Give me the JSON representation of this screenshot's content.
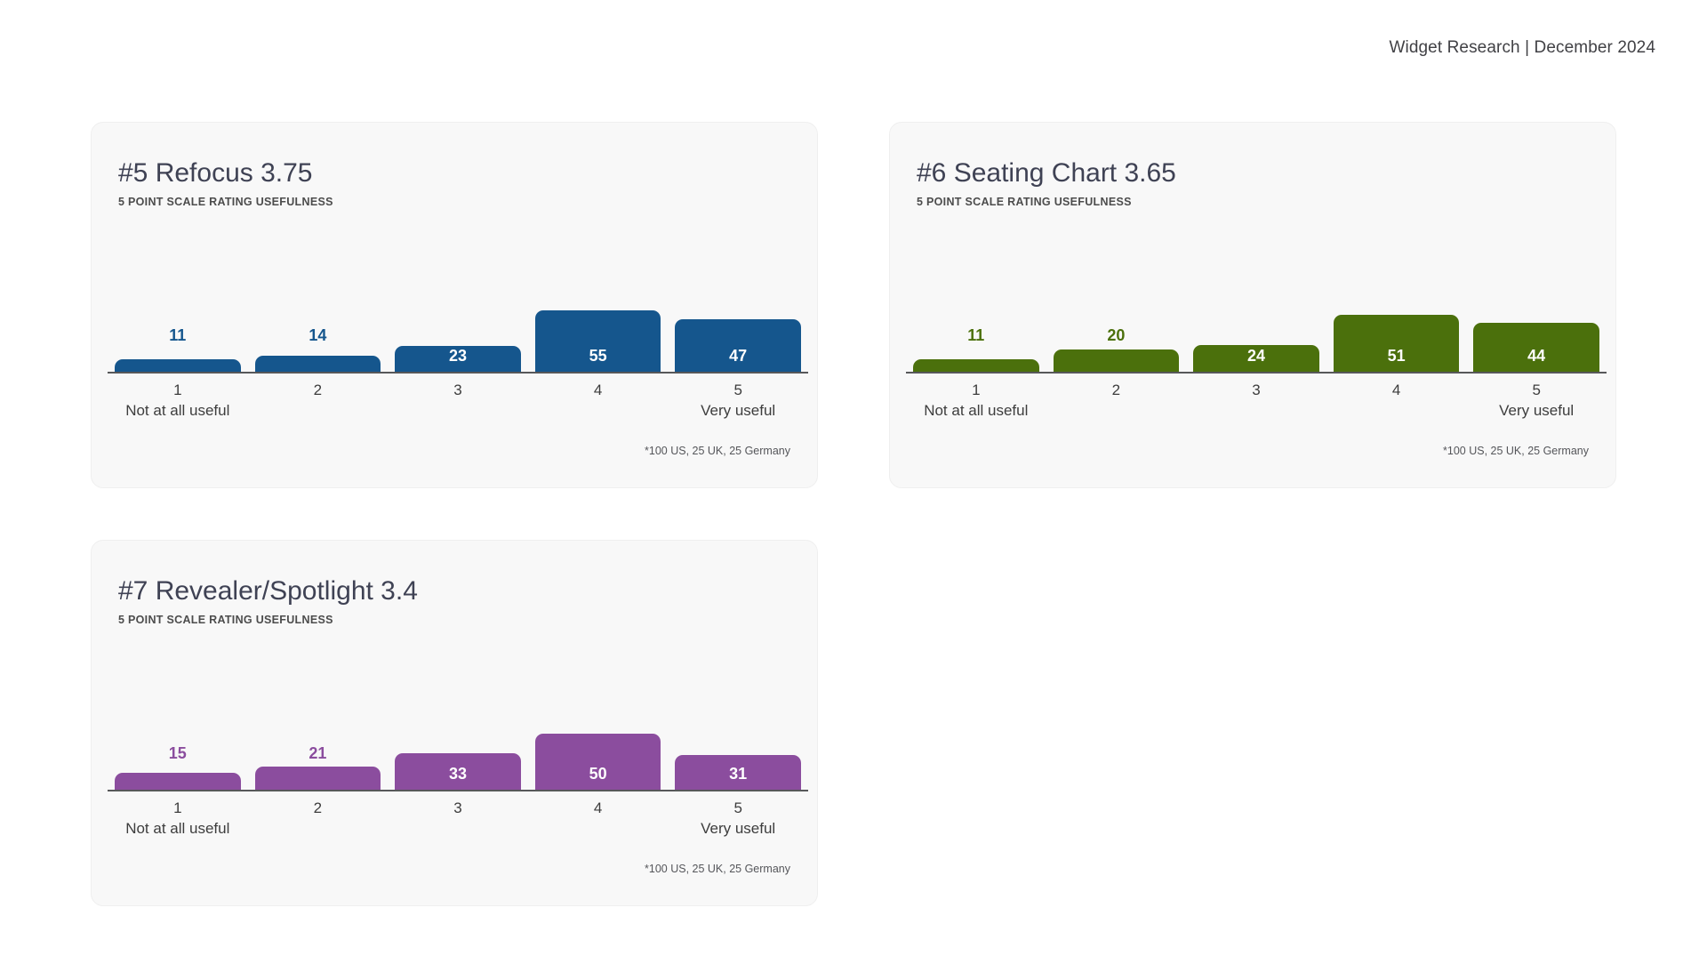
{
  "header": {
    "caption": "Widget Research | December 2024"
  },
  "colors": {
    "page_background": "#ffffff",
    "card_background": "#f8f8f8",
    "axis_line": "#57585a",
    "title_text": "#3f4254",
    "blue": "#15568d",
    "green": "#4b700c",
    "purple": "#8b4d9e"
  },
  "chart_data": [
    {
      "type": "bar",
      "title": "#5 Refocus 3.75",
      "subtitle": "5 POINT SCALE RATING USEFULNESS",
      "categories": [
        "1",
        "2",
        "3",
        "4",
        "5"
      ],
      "values": [
        11,
        14,
        23,
        55,
        47
      ],
      "bar_color": "#15568d",
      "value_labels": "on",
      "category_sublabels": {
        "1": "Not at all useful",
        "5": "Very useful"
      },
      "footnote": "*100 US, 25 UK, 25 Germany",
      "xlabel": "",
      "ylabel": "",
      "grid": "off",
      "legend": "none"
    },
    {
      "type": "bar",
      "title": "#6 Seating Chart 3.65",
      "subtitle": "5 POINT SCALE RATING USEFULNESS",
      "categories": [
        "1",
        "2",
        "3",
        "4",
        "5"
      ],
      "values": [
        11,
        20,
        24,
        51,
        44
      ],
      "bar_color": "#4b700c",
      "value_labels": "on",
      "category_sublabels": {
        "1": "Not at all useful",
        "5": "Very useful"
      },
      "footnote": "*100 US, 25 UK, 25 Germany",
      "xlabel": "",
      "ylabel": "",
      "grid": "off",
      "legend": "none"
    },
    {
      "type": "bar",
      "title": "#7 Revealer/Spotlight 3.4",
      "subtitle": "5 POINT SCALE RATING USEFULNESS",
      "categories": [
        "1",
        "2",
        "3",
        "4",
        "5"
      ],
      "values": [
        15,
        21,
        33,
        50,
        31
      ],
      "bar_color": "#8b4d9e",
      "value_labels": "on",
      "category_sublabels": {
        "1": "Not at all useful",
        "5": "Very useful"
      },
      "footnote": "*100 US, 25 UK, 25 Germany",
      "xlabel": "",
      "ylabel": "",
      "grid": "off",
      "legend": "none"
    }
  ]
}
